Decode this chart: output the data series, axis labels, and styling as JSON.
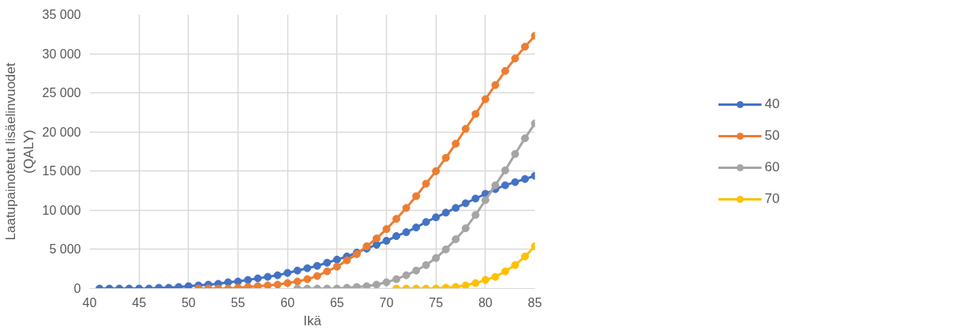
{
  "chart_data": {
    "type": "line",
    "xlabel": "Ikä",
    "ylabel": "Laatupainotetut lisäelinvuodet (QALY)",
    "xlim": [
      40,
      85
    ],
    "xticks": [
      40,
      45,
      50,
      55,
      60,
      65,
      70,
      75,
      80,
      85
    ],
    "ylim": [
      0,
      35000
    ],
    "yticks": [
      0,
      {
        "value": 5000,
        "label": "5 000"
      },
      {
        "value": 10000,
        "label": "10 000"
      },
      {
        "value": 15000,
        "label": "15 000"
      },
      {
        "value": 20000,
        "label": "20 000"
      },
      {
        "value": 25000,
        "label": "25 000"
      },
      {
        "value": 30000,
        "label": "30 000"
      },
      {
        "value": 35000,
        "label": "35 000"
      }
    ],
    "grid": true,
    "legend": "right",
    "marker": "circle",
    "line_style": "solid",
    "series": [
      {
        "name": "40",
        "color": "#4472c4",
        "x": [
          41,
          42,
          43,
          44,
          45,
          46,
          47,
          48,
          49,
          50,
          51,
          52,
          53,
          54,
          55,
          56,
          57,
          58,
          59,
          60,
          61,
          62,
          63,
          64,
          65,
          66,
          67,
          68,
          69,
          70,
          71,
          72,
          73,
          74,
          75,
          76,
          77,
          78,
          79,
          80,
          81,
          82,
          83,
          84,
          85
        ],
        "values": [
          0,
          0,
          0,
          0,
          0,
          0,
          100,
          100,
          200,
          300,
          400,
          500,
          600,
          800,
          900,
          1100,
          1300,
          1500,
          1700,
          2000,
          2300,
          2600,
          2900,
          3300,
          3700,
          4100,
          4600,
          5100,
          5600,
          6100,
          6700,
          7200,
          7800,
          8500,
          9100,
          9700,
          10300,
          10900,
          11500,
          12100,
          12700,
          13200,
          13600,
          14000,
          14400
        ]
      },
      {
        "name": "50",
        "color": "#ed7d31",
        "x": [
          51,
          52,
          53,
          54,
          55,
          56,
          57,
          58,
          59,
          60,
          61,
          62,
          63,
          64,
          65,
          66,
          67,
          68,
          69,
          70,
          71,
          72,
          73,
          74,
          75,
          76,
          77,
          78,
          79,
          80,
          81,
          82,
          83,
          84,
          85
        ],
        "values": [
          0,
          0,
          0,
          0,
          100,
          200,
          300,
          400,
          500,
          700,
          900,
          1200,
          1600,
          2200,
          2800,
          3600,
          4400,
          5400,
          6400,
          7600,
          8900,
          10300,
          11800,
          13400,
          15000,
          16700,
          18500,
          20400,
          22300,
          24200,
          26000,
          27800,
          29400,
          30900,
          32300
        ]
      },
      {
        "name": "60",
        "color": "#a5a5a5",
        "x": [
          61,
          62,
          63,
          64,
          65,
          66,
          67,
          68,
          69,
          70,
          71,
          72,
          73,
          74,
          75,
          76,
          77,
          78,
          79,
          80,
          81,
          82,
          83,
          84,
          85
        ],
        "values": [
          0,
          0,
          0,
          0,
          0,
          100,
          200,
          300,
          500,
          800,
          1200,
          1700,
          2300,
          3000,
          3900,
          5000,
          6300,
          7700,
          9400,
          11300,
          13200,
          15100,
          17200,
          19200,
          21100
        ]
      },
      {
        "name": "70",
        "color": "#ffc000",
        "x": [
          71,
          72,
          73,
          74,
          75,
          76,
          77,
          78,
          79,
          80,
          81,
          82,
          83,
          84,
          85
        ],
        "values": [
          0,
          0,
          0,
          0,
          0,
          100,
          200,
          400,
          700,
          1100,
          1500,
          2200,
          3000,
          4100,
          5400
        ]
      }
    ]
  }
}
